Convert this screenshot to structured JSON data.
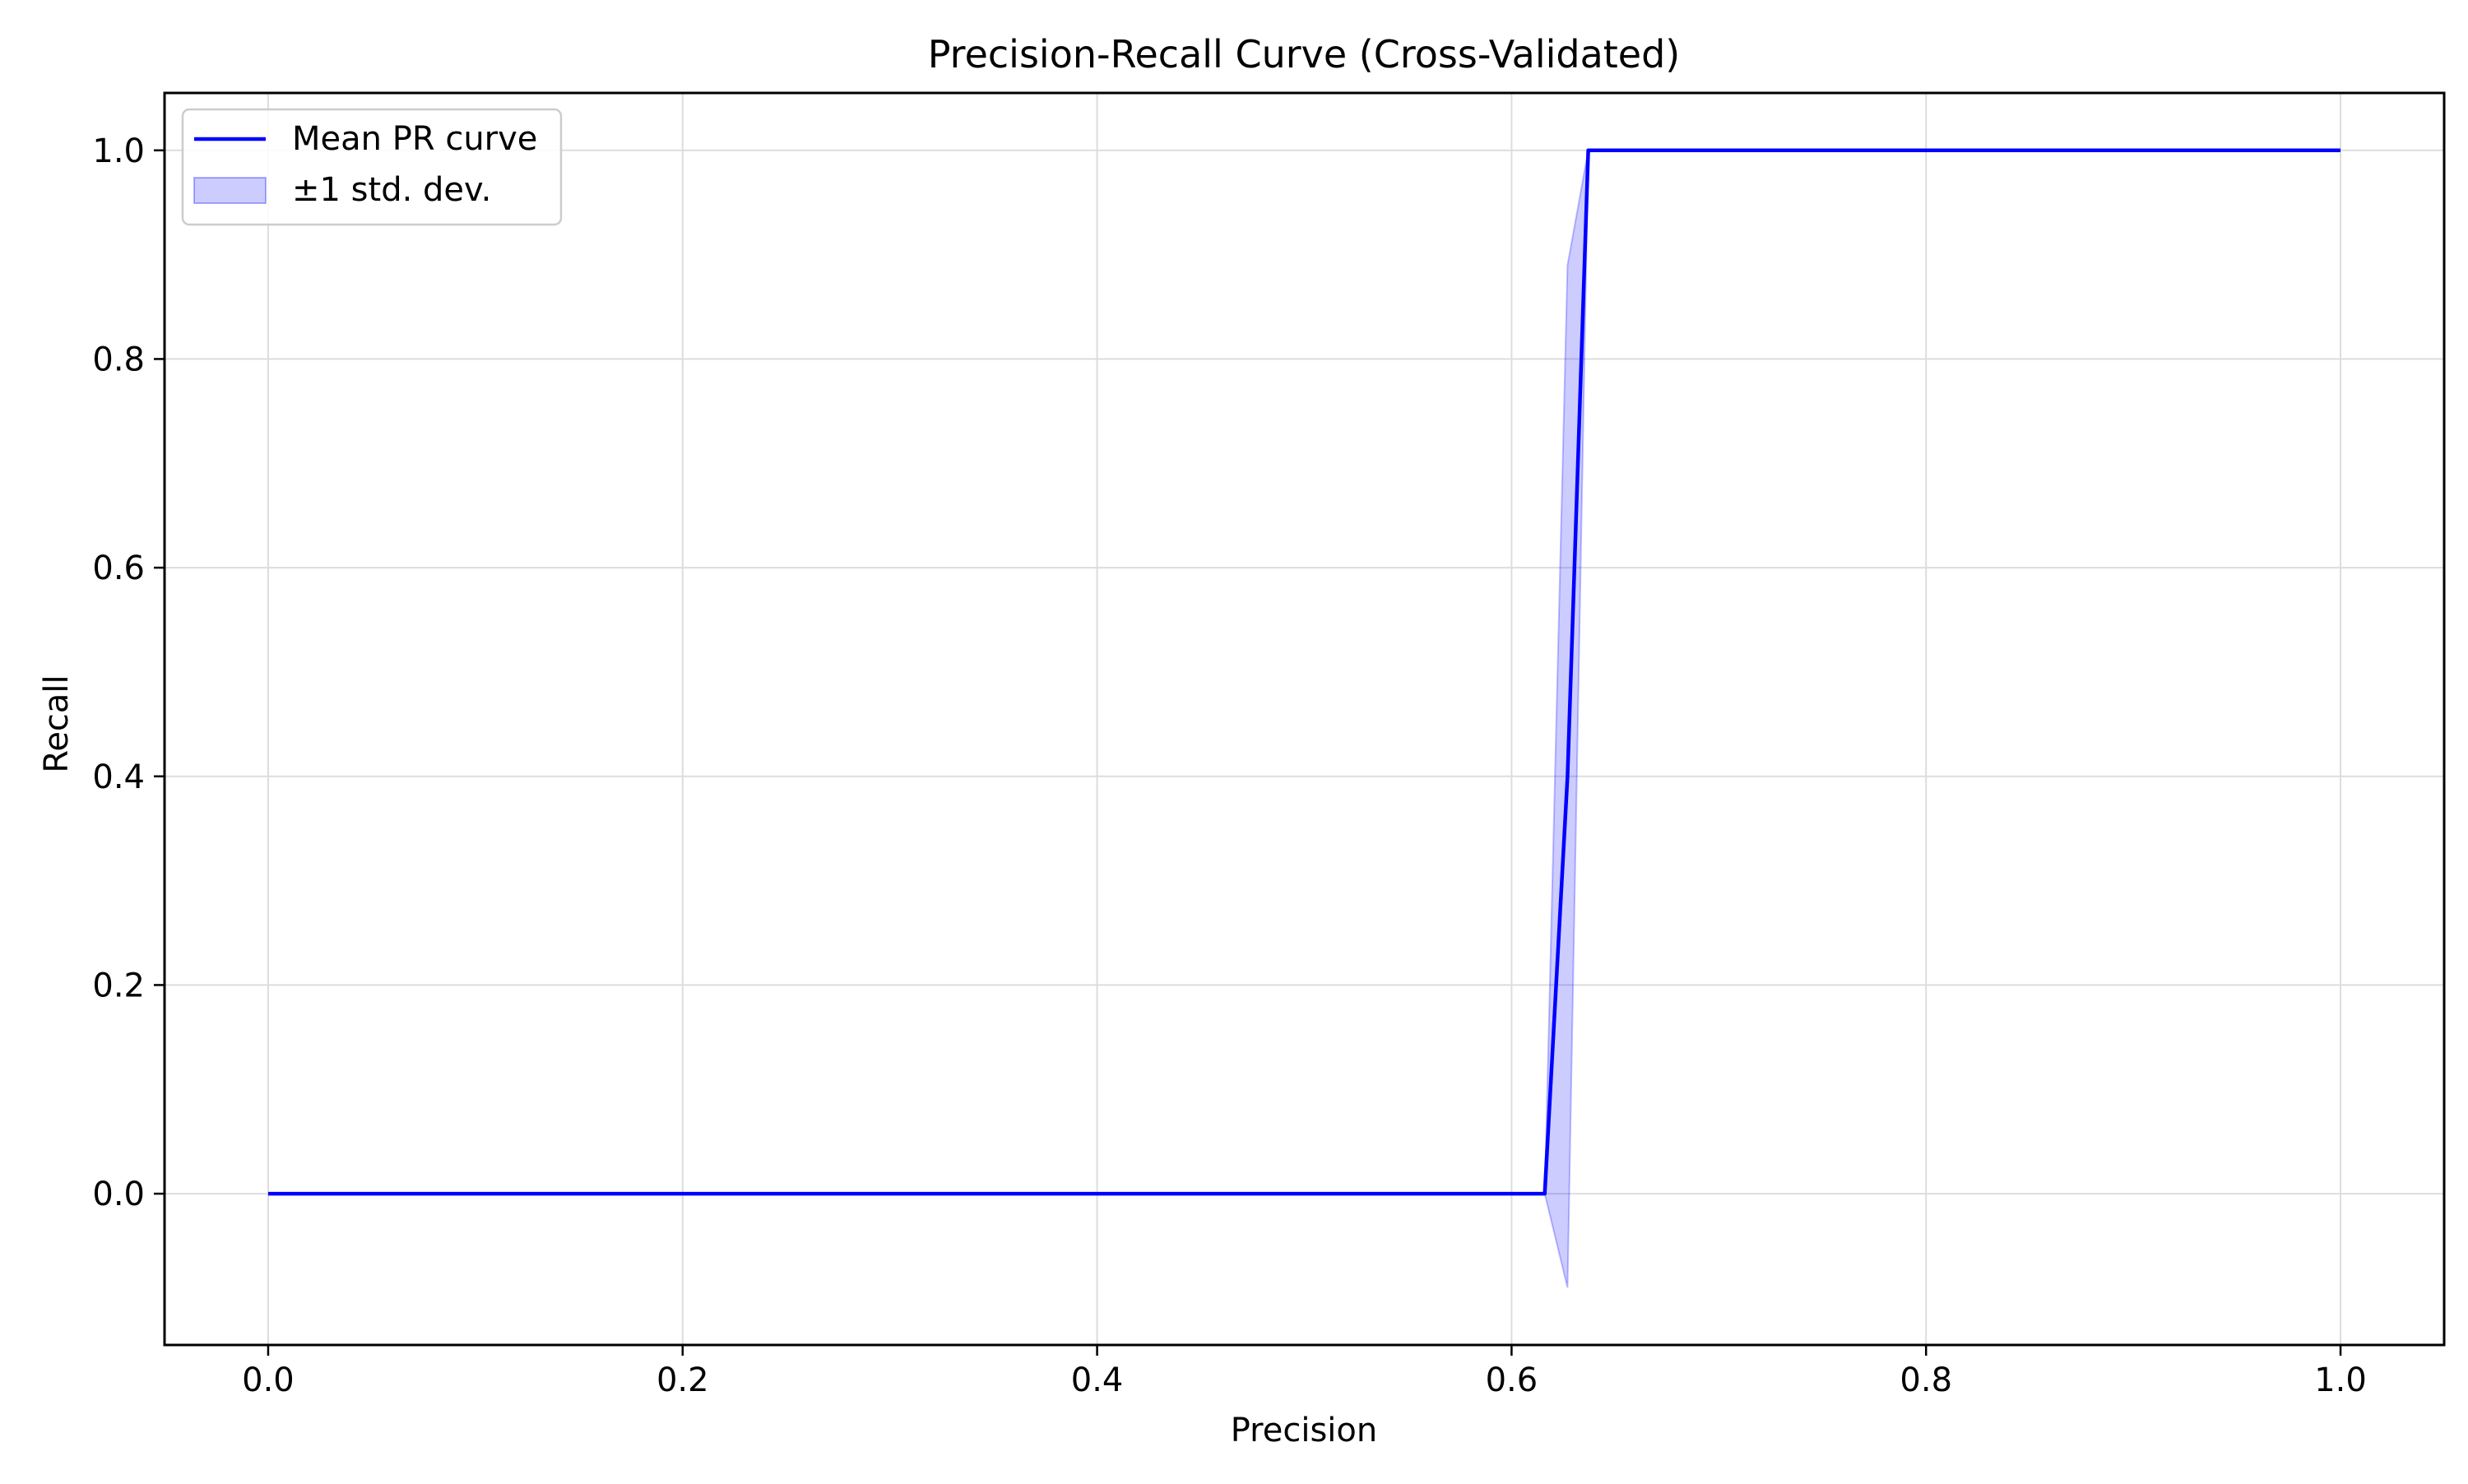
{
  "chart_data": {
    "type": "line",
    "title": "Precision-Recall Curve (Cross-Validated)",
    "xlabel": "Precision",
    "ylabel": "Recall",
    "xlim": [
      -0.05,
      1.05
    ],
    "ylim": [
      -0.145,
      1.055
    ],
    "xticks": [
      0.0,
      0.2,
      0.4,
      0.6,
      0.8,
      1.0
    ],
    "xtick_labels": [
      "0.0",
      "0.2",
      "0.4",
      "0.6",
      "0.8",
      "1.0"
    ],
    "yticks": [
      0.0,
      0.2,
      0.4,
      0.6,
      0.8,
      1.0
    ],
    "ytick_labels": [
      "0.0",
      "0.2",
      "0.4",
      "0.6",
      "0.8",
      "1.0"
    ],
    "grid": true,
    "legend_position": "upper-left",
    "series": [
      {
        "name": "Mean PR curve",
        "color": "#0000ff",
        "x": [
          0.0,
          0.616,
          0.627,
          0.637,
          1.0
        ],
        "y": [
          0.0,
          0.0,
          0.4,
          1.0,
          1.0
        ]
      }
    ],
    "band": {
      "name": "±1 std. dev.",
      "color": "#0000ff",
      "opacity": 0.2,
      "x": [
        0.0,
        0.616,
        0.627,
        0.637,
        1.0
      ],
      "lower": [
        0.0,
        0.0,
        -0.09,
        1.0,
        1.0
      ],
      "upper": [
        0.0,
        0.0,
        0.89,
        1.0,
        1.0
      ]
    }
  }
}
